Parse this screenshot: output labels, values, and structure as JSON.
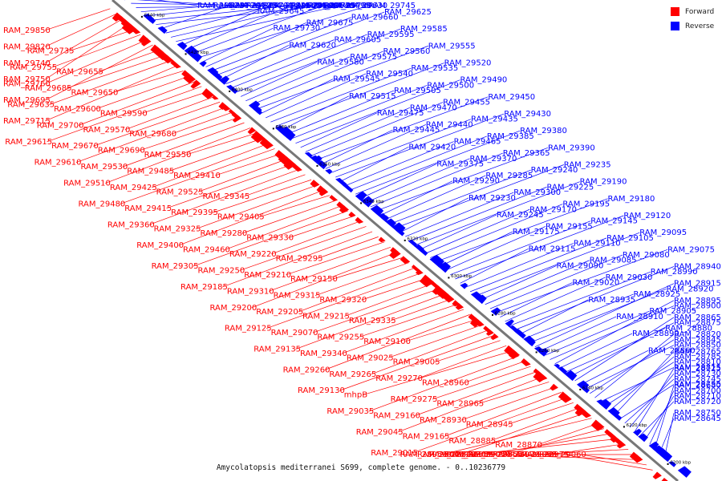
{
  "colors": {
    "forward": "#ff0000",
    "reverse": "#0000ff",
    "axis": "#777777",
    "tick": "#000000"
  },
  "legend": {
    "forward_label": "Forward",
    "reverse_label": "Reverse"
  },
  "caption": "Amycolatopsis mediterranei S699, complete genome. - 0..10236779",
  "axis": {
    "ticks": [
      "6440 kbp",
      "6420 kbp",
      "6400 kbp",
      "6380 kbp",
      "6360 kbp",
      "6340 kbp",
      "6320 kbp",
      "6300 kbp",
      "6280 kbp",
      "6260 kbp",
      "6240 kbp",
      "6220 kbp",
      "6200 kbp"
    ]
  },
  "genes_reverse": [
    "RAM_29875",
    "RAM_29845",
    "RAM_29815",
    "RAM_29795",
    "RAM_29770",
    "RAM_29790",
    "RAM_29800",
    "RAM_29780",
    "RAM_29725",
    "RAM_29665",
    "RAM_29640",
    "RAM_29630",
    "RAM_29645",
    "RAM_29565",
    "RAM_29495",
    "RAM_29745",
    "RAM_29730",
    "RAM_29675",
    "RAM_29660",
    "RAM_29625",
    "RAM_29620",
    "RAM_29605",
    "RAM_29595",
    "RAM_29585",
    "RAM_29580",
    "RAM_29575",
    "RAM_29560",
    "RAM_29555",
    "RAM_29545",
    "RAM_29540",
    "RAM_29535",
    "RAM_29520",
    "RAM_29515",
    "RAM_29505",
    "RAM_29500",
    "RAM_29490",
    "RAM_29475",
    "RAM_29470",
    "RAM_29455",
    "RAM_29450",
    "RAM_29445",
    "RAM_29440",
    "RAM_29435",
    "RAM_29430",
    "RAM_29420",
    "RAM_29465",
    "RAM_29385",
    "RAM_29380",
    "RAM_29375",
    "RAM_29370",
    "RAM_29365",
    "RAM_29390",
    "RAM_29290",
    "RAM_29285",
    "RAM_29240",
    "RAM_29235",
    "RAM_29230",
    "RAM_29300",
    "RAM_29225",
    "RAM_29190",
    "RAM_29245",
    "RAM_29170",
    "RAM_29195",
    "RAM_29180",
    "RAM_29175",
    "RAM_29155",
    "RAM_29145",
    "RAM_29120",
    "RAM_29115",
    "RAM_29110",
    "RAM_29105",
    "RAM_29095",
    "RAM_29090",
    "RAM_29085",
    "RAM_29080",
    "RAM_29075",
    "RAM_29020",
    "RAM_29030",
    "RAM_28990",
    "RAM_28940",
    "RAM_28935",
    "RAM_28925",
    "RAM_28920",
    "RAM_28915",
    "RAM_28910",
    "RAM_28905",
    "RAM_28900",
    "RAM_28895",
    "RAM_28890",
    "RAM_28880",
    "RAM_28875",
    "RAM_28865",
    "RAM_28860",
    "RAM_28850",
    "RAM_28845",
    "RAM_28820",
    "RAM_28815",
    "RAM_28810",
    "RAM_28785",
    "RAM_28765",
    "RAM_28755",
    "RAM_28745",
    "RAM_28730",
    "RAM_28725",
    "RAM_28720",
    "RAM_28710",
    "RAM_28700",
    "RAM_28680",
    "RAM_28645",
    "RAM_28750"
  ],
  "genes_forward": [
    "RAM_29850",
    "RAM_29820",
    "RAM_29740",
    "RAM_29750",
    "RAM_29735",
    "RAM_29755",
    "RAM_29760",
    "RAM_29695",
    "RAM_29655",
    "RAM_29685",
    "RAM_29635",
    "RAM_29715",
    "RAM_29650",
    "RAM_29600",
    "RAM_29700",
    "RAM_29615",
    "RAM_29590",
    "RAM_29570",
    "RAM_29670",
    "RAM_29610",
    "RAM_29680",
    "RAM_29690",
    "RAM_29530",
    "RAM_29510",
    "RAM_29550",
    "RAM_29485",
    "RAM_29425",
    "RAM_29480",
    "RAM_29410",
    "RAM_29525",
    "RAM_29415",
    "RAM_29360",
    "RAM_29345",
    "RAM_29395",
    "RAM_29325",
    "RAM_29400",
    "RAM_29405",
    "RAM_29280",
    "RAM_29460",
    "RAM_29305",
    "RAM_29330",
    "RAM_29220",
    "RAM_29250",
    "RAM_29185",
    "RAM_29295",
    "RAM_29210",
    "RAM_29310",
    "RAM_29200",
    "RAM_29150",
    "RAM_29315",
    "RAM_29205",
    "RAM_29125",
    "RAM_29320",
    "RAM_29215",
    "RAM_29070",
    "RAM_29135",
    "RAM_29335",
    "RAM_29255",
    "RAM_29340",
    "RAM_29260",
    "RAM_29100",
    "RAM_29025",
    "RAM_29265",
    "RAM_29130",
    "RAM_29005",
    "RAM_29270",
    "mhpB",
    "RAM_29035",
    "RAM_28960",
    "RAM_29275",
    "RAM_29160",
    "RAM_29045",
    "RAM_28965",
    "RAM_28930",
    "RAM_29165",
    "RAM_29015",
    "RAM_28945",
    "RAM_28885",
    "RAM_29040",
    "RAM_28950",
    "RAM_28870",
    "RAM_29050",
    "RAM_28955",
    "RAM_28840",
    "RAM_29055",
    "RAM_28970",
    "RAM_28855",
    "RAM_28805",
    "RAM_29060",
    "RAM_28975"
  ]
}
